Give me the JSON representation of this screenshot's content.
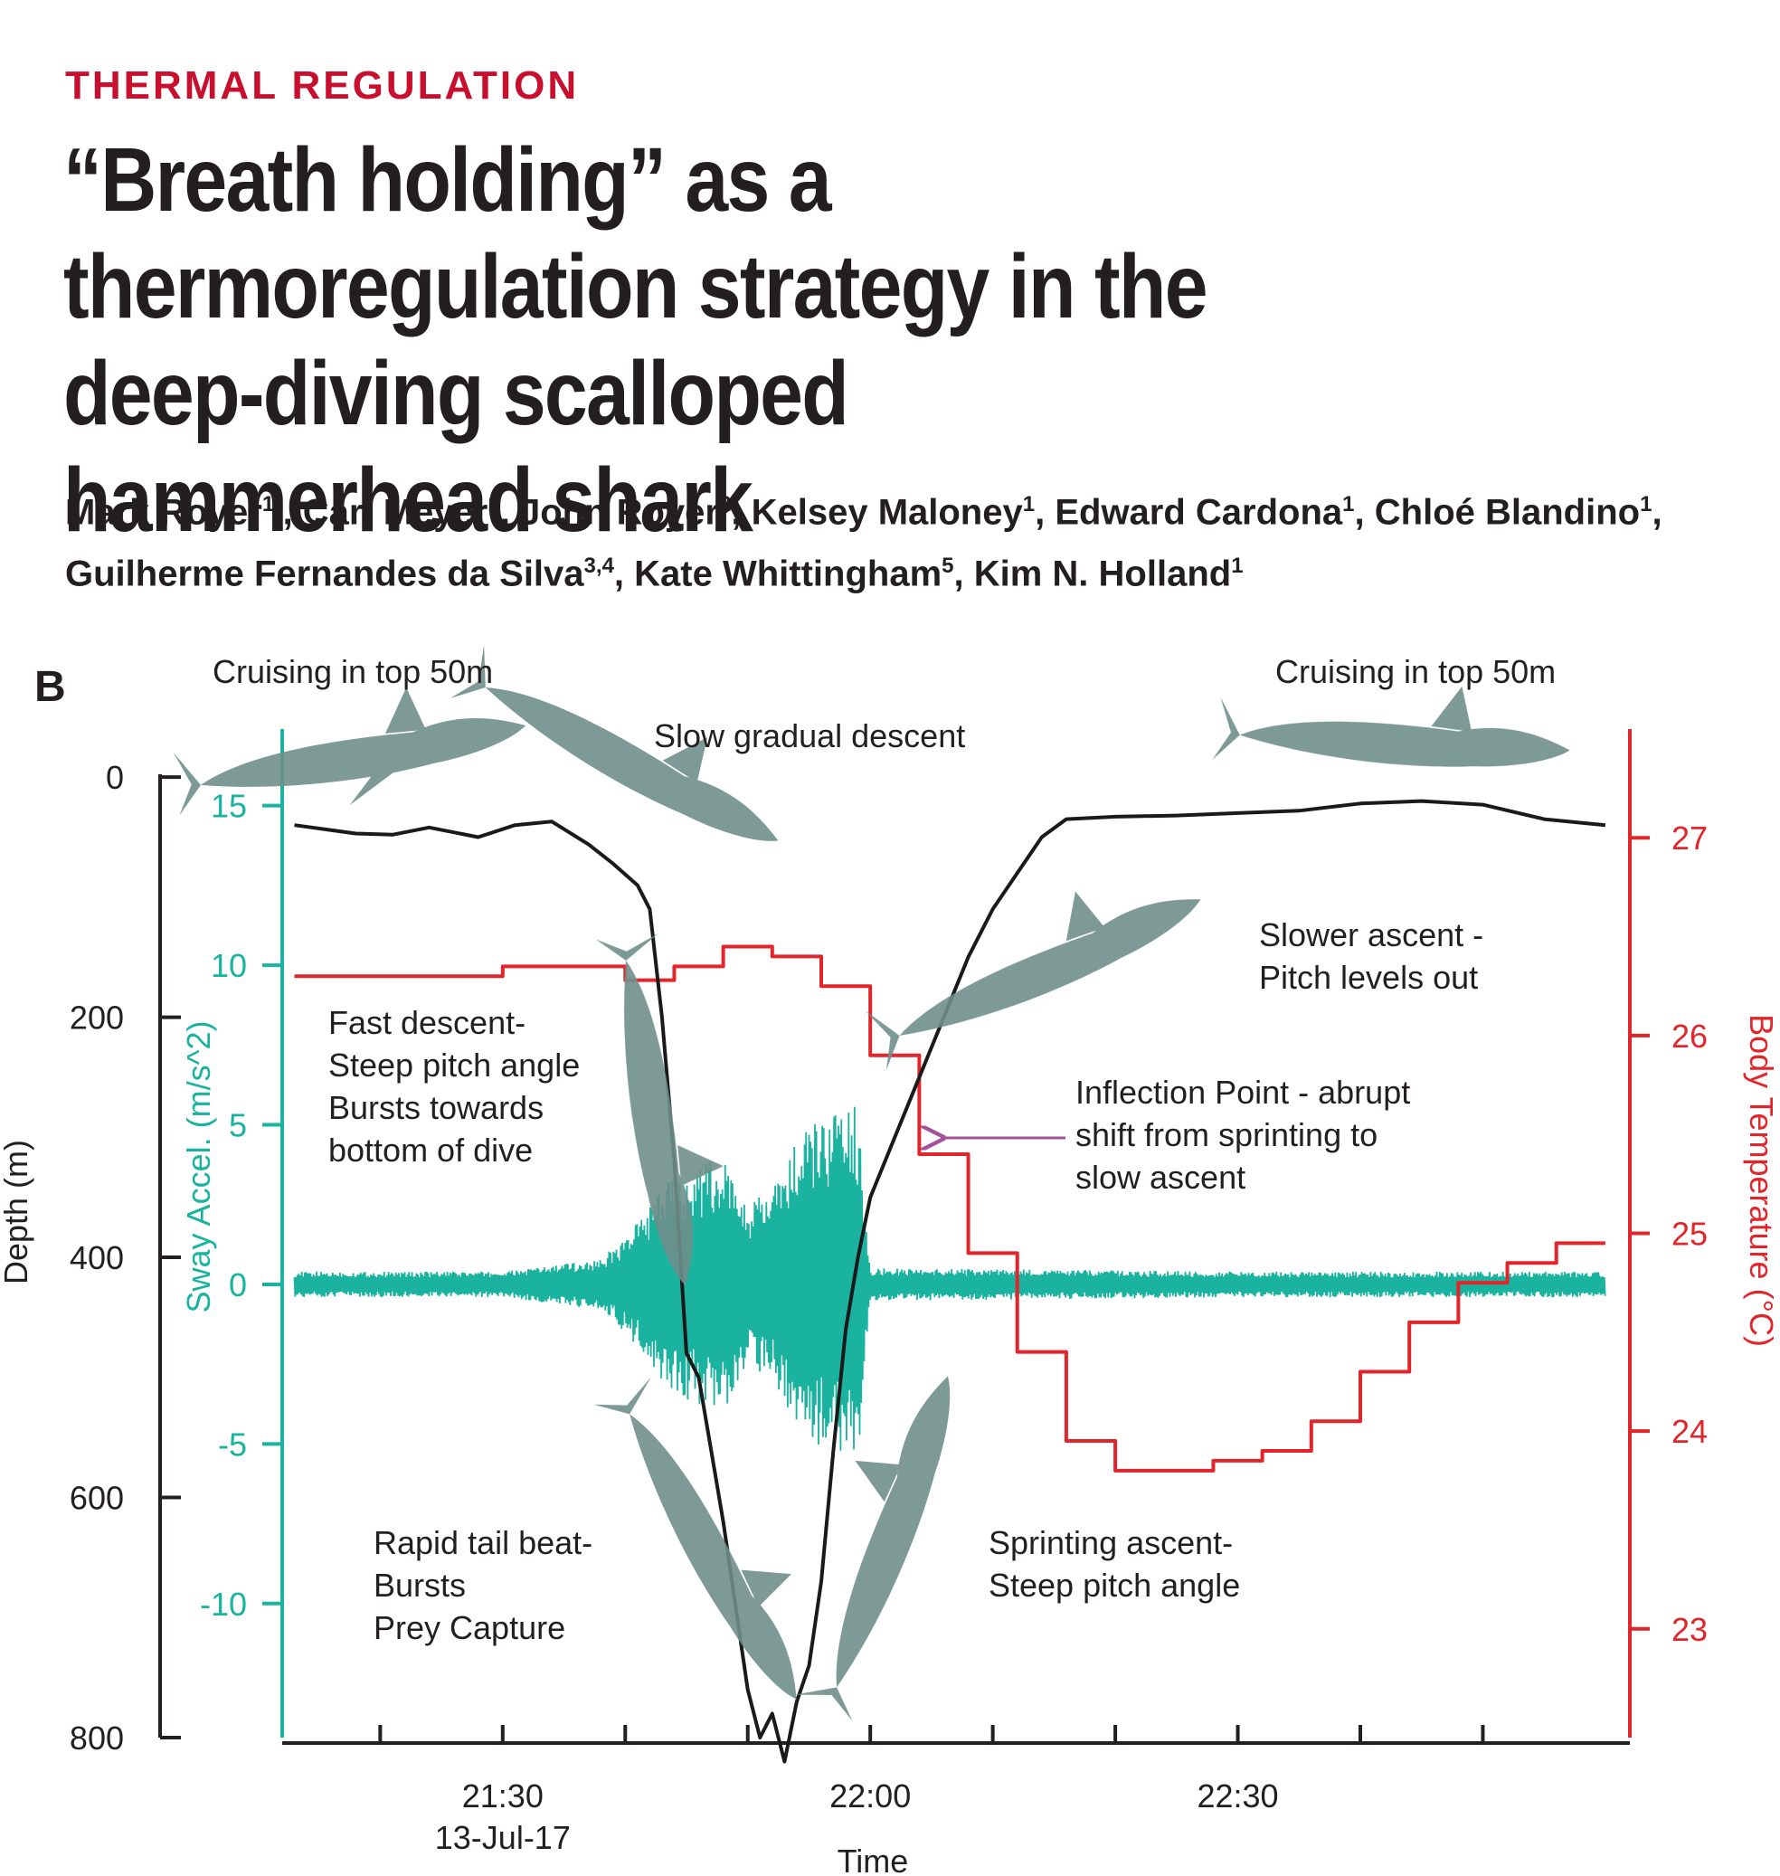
{
  "header": {
    "section_label": "THERMAL REGULATION",
    "title": "“Breath holding” as a thermoregulation strategy in the deep-diving scalloped hammerhead shark",
    "authors": [
      {
        "name": "Mark Royer",
        "aff": "1*"
      },
      {
        "name": "Carl Meyer",
        "aff": "1"
      },
      {
        "name": "John Royer",
        "aff": "2"
      },
      {
        "name": "Kelsey Maloney",
        "aff": "1"
      },
      {
        "name": "Edward Cardona",
        "aff": "1"
      },
      {
        "name": "Chloé Blandino",
        "aff": "1"
      },
      {
        "name": "Guilherme Fernandes da Silva",
        "aff": "3,4"
      },
      {
        "name": "Kate Whittingham",
        "aff": "5"
      },
      {
        "name": "Kim N. Holland",
        "aff": "1"
      }
    ]
  },
  "figure": {
    "panel_label": "B",
    "annotations": {
      "cruising_left": "Cruising in top 50m",
      "cruising_right": "Cruising in top 50m",
      "slow_descent": "Slow gradual descent",
      "slower_ascent": [
        "Slower ascent -",
        "Pitch levels out"
      ],
      "fast_descent": [
        "Fast descent-",
        "Steep pitch angle",
        "Bursts towards",
        "bottom of dive"
      ],
      "inflection": [
        "Inflection Point - abrupt",
        "shift from sprinting to",
        "slow ascent"
      ],
      "rapid_tail": [
        "Rapid tail beat-",
        "Bursts",
        "Prey Capture"
      ],
      "sprinting": [
        "Sprinting ascent-",
        "Steep pitch angle"
      ]
    },
    "colors": {
      "depth": "#1a1a1a",
      "sway": "#1ab39f",
      "temperature": "#e0262b",
      "arrow": "#a1529a"
    }
  },
  "chart_data": {
    "type": "line",
    "xlabel": "Time",
    "x_ticks": [
      {
        "value": "21:30",
        "sublabel": "13-Jul-17"
      },
      {
        "value": "22:00",
        "sublabel": ""
      },
      {
        "value": "22:30",
        "sublabel": ""
      }
    ],
    "x_range": [
      "21:12",
      "23:02"
    ],
    "axes": {
      "depth": {
        "label": "Depth (m)",
        "ticks": [
          0,
          200,
          400,
          600,
          800
        ],
        "range": [
          -40,
          800
        ],
        "inverted": true
      },
      "sway": {
        "label": "Sway Accel. (m/s^2)",
        "ticks": [
          15,
          10,
          5,
          0,
          -5,
          -10
        ],
        "range": [
          -14.2,
          17.4
        ]
      },
      "temperature": {
        "label": "Body Temperature (°C)",
        "ticks": [
          27,
          26,
          25,
          24,
          23
        ],
        "range": [
          22.45,
          27.55
        ]
      }
    },
    "series": [
      {
        "axis": "depth",
        "x": [
          "21:13",
          "21:18",
          "21:21",
          "21:24",
          "21:28",
          "21:31",
          "21:34",
          "21:37",
          "21:39",
          "21:41",
          "21:42",
          "21:43",
          "21:44",
          "21:45",
          "21:46",
          "21:47",
          "21:48",
          "21:49",
          "21:50",
          "21:51",
          "21:52",
          "21:53",
          "21:54",
          "21:55",
          "21:56",
          "21:57",
          "21:58",
          "21:59",
          "22:00",
          "22:02",
          "22:04",
          "22:06",
          "22:08",
          "22:10",
          "22:12",
          "22:14",
          "22:16",
          "22:20",
          "22:25",
          "22:30",
          "22:35",
          "22:40",
          "22:45",
          "22:50",
          "22:55",
          "23:00"
        ],
        "y": [
          40,
          47,
          48,
          42,
          50,
          40,
          37,
          56,
          72,
          90,
          110,
          200,
          320,
          480,
          500,
          560,
          620,
          690,
          760,
          800,
          780,
          820,
          770,
          740,
          670,
          560,
          460,
          400,
          350,
          300,
          250,
          200,
          150,
          110,
          80,
          50,
          35,
          33,
          32,
          30,
          28,
          22,
          20,
          23,
          35,
          40
        ]
      },
      {
        "axis": "temperature",
        "x": [
          "21:13",
          "21:25",
          "21:30",
          "21:37",
          "21:40",
          "21:44",
          "21:48",
          "21:52",
          "21:56",
          "22:00",
          "22:04",
          "22:08",
          "22:12",
          "22:16",
          "22:20",
          "22:24",
          "22:28",
          "22:32",
          "22:36",
          "22:40",
          "22:44",
          "22:48",
          "22:52",
          "22:56",
          "23:00"
        ],
        "y": [
          26.3,
          26.3,
          26.35,
          26.35,
          26.28,
          26.35,
          26.45,
          26.4,
          26.25,
          25.9,
          25.4,
          24.9,
          24.4,
          23.95,
          23.8,
          23.8,
          23.85,
          23.9,
          24.05,
          24.3,
          24.55,
          24.75,
          24.85,
          24.95,
          24.95
        ]
      },
      {
        "axis": "sway",
        "x": [
          "21:13",
          "21:30",
          "21:38",
          "21:40",
          "21:44",
          "21:48",
          "21:50",
          "21:52",
          "21:54",
          "21:56",
          "21:58",
          "21:59",
          "22:00",
          "22:05",
          "22:30",
          "23:00"
        ],
        "amplitude_min": [
          -0.4,
          -0.4,
          -0.8,
          -1.5,
          -3.5,
          -4,
          -2.5,
          -3,
          -4.5,
          -5.2,
          -5.5,
          -5.5,
          -0.5,
          -0.5,
          -0.4,
          -0.4
        ],
        "amplitude_max": [
          0.4,
          0.4,
          0.8,
          1.5,
          3.5,
          4,
          2.5,
          3,
          4.5,
          5.3,
          5.6,
          5.6,
          0.5,
          0.5,
          0.4,
          0.4
        ]
      }
    ]
  }
}
